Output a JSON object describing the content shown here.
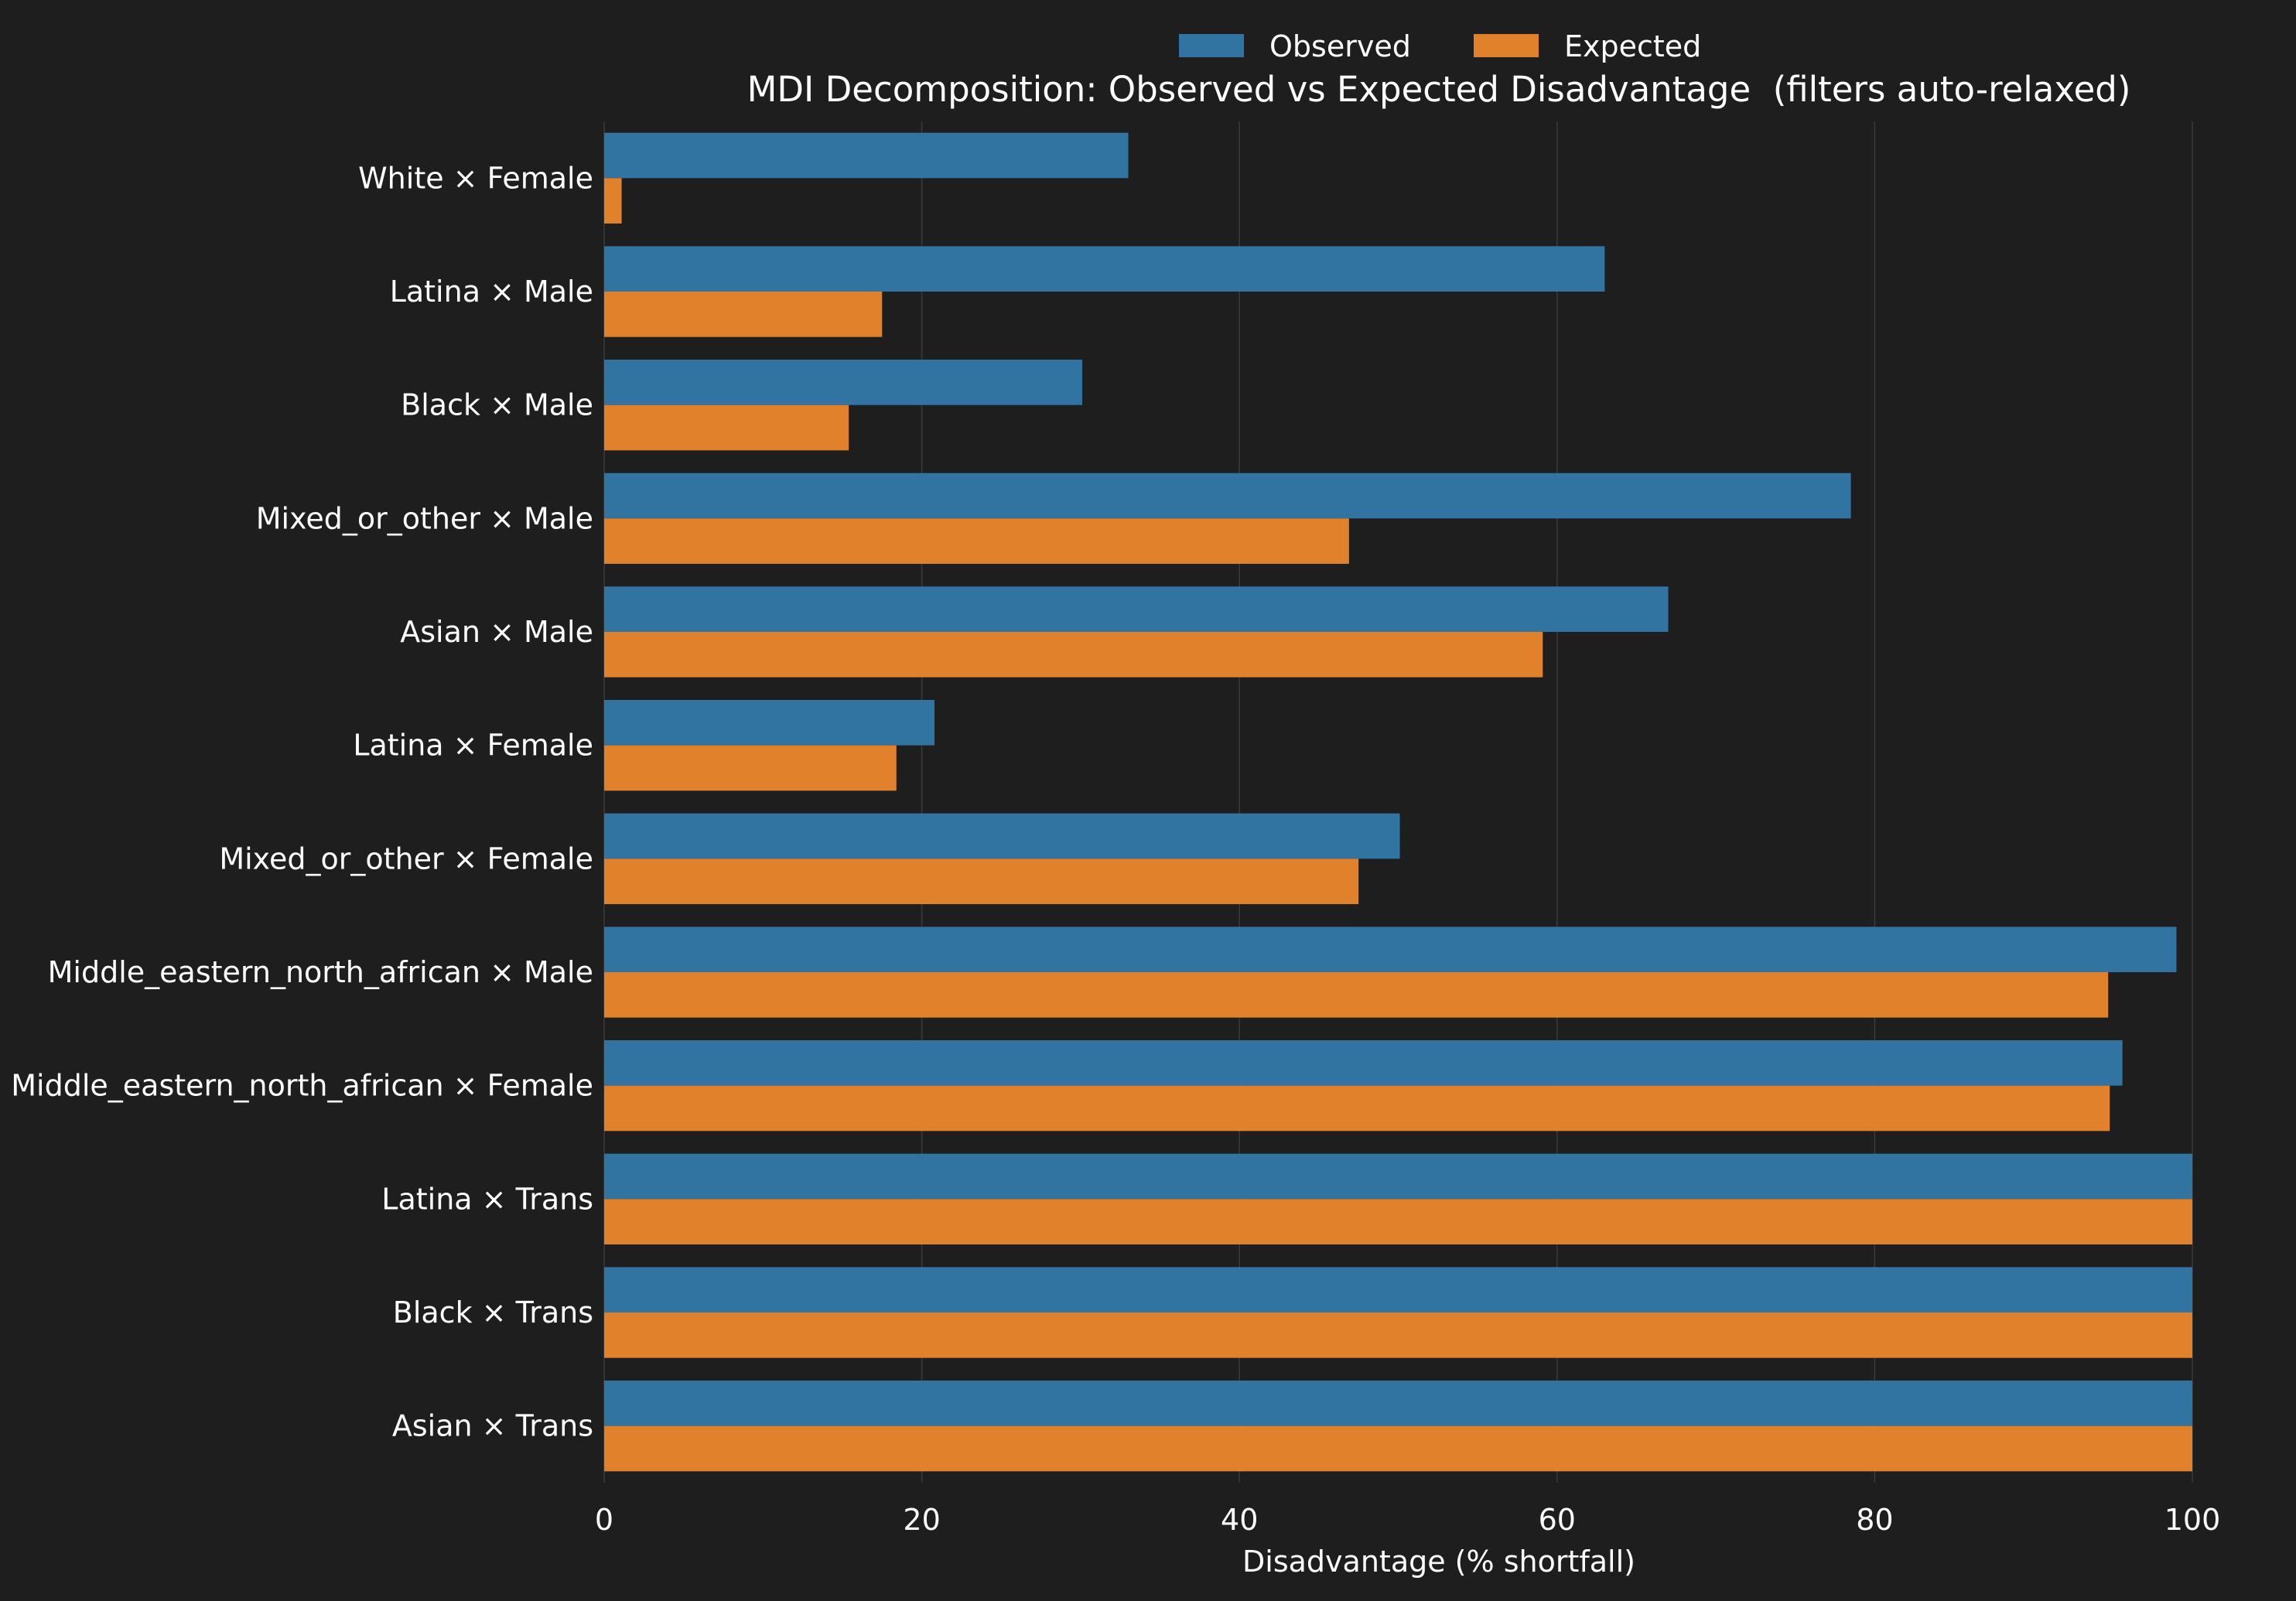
{
  "colors": {
    "background": "#1e1e1e",
    "grid": "#3a3a3a",
    "text": "#ffffff"
  },
  "chart_data": {
    "type": "bar",
    "orientation": "horizontal",
    "title": "MDI Decomposition: Observed vs Expected Disadvantage  (filters auto-relaxed)",
    "xlabel": "Disadvantage (% shortfall)",
    "ylabel": "",
    "xlim": [
      0,
      100
    ],
    "xticks": [
      0,
      20,
      40,
      60,
      80,
      100
    ],
    "grid": "vertical",
    "legend": "top-center",
    "categories": [
      "White × Female",
      "Latina × Male",
      "Black × Male",
      "Mixed_or_other × Male",
      "Asian × Male",
      "Latina × Female",
      "Mixed_or_other × Female",
      "Middle_eastern_north_african × Male",
      "Middle_eastern_north_african × Female",
      "Latina × Trans",
      "Black × Trans",
      "Asian × Trans"
    ],
    "series": [
      {
        "name": "Observed",
        "color": "#3274a1",
        "values": [
          33.0,
          63.0,
          30.1,
          78.5,
          67.0,
          20.8,
          50.1,
          99.0,
          95.6,
          100,
          100,
          100
        ]
      },
      {
        "name": "Expected",
        "color": "#e1812c",
        "values": [
          1.1,
          17.5,
          15.4,
          46.9,
          59.1,
          18.4,
          47.5,
          94.7,
          94.8,
          100,
          100,
          100
        ]
      }
    ]
  }
}
